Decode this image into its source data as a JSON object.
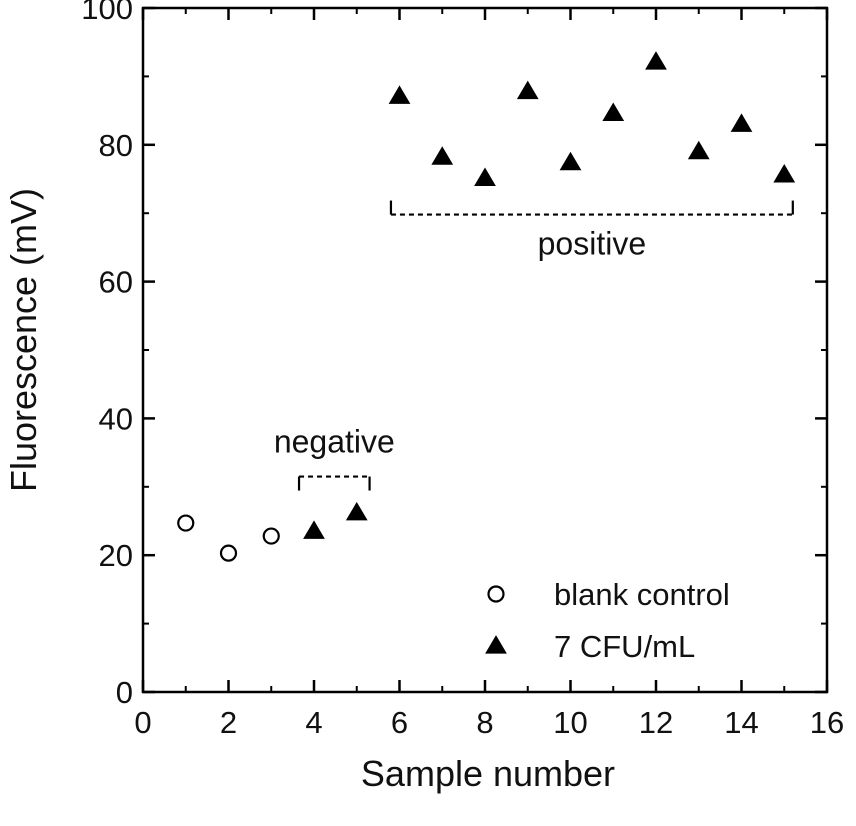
{
  "chart_data": {
    "type": "scatter",
    "title": "",
    "xlabel": "Sample number",
    "ylabel": "Fluorescence (mV)",
    "xlim": [
      0,
      16
    ],
    "ylim": [
      0,
      100
    ],
    "xticks": [
      0,
      2,
      4,
      6,
      8,
      10,
      12,
      14,
      16
    ],
    "yticks": [
      0,
      20,
      40,
      60,
      80,
      100
    ],
    "grid": false,
    "legend_position": "bottom-right",
    "series": [
      {
        "name": "blank control",
        "marker": "open-circle",
        "color": "#000000",
        "x": [
          1,
          2,
          3
        ],
        "y": [
          24.7,
          20.3,
          22.8
        ]
      },
      {
        "name": "7 CFU/mL",
        "marker": "filled-triangle",
        "color": "#000000",
        "x": [
          4,
          5,
          6,
          7,
          8,
          9,
          10,
          11,
          12,
          13,
          14,
          15
        ],
        "y": [
          23.5,
          26.2,
          87.1,
          78.2,
          75.1,
          87.8,
          77.4,
          84.6,
          92.1,
          79.0,
          83.0,
          75.6
        ]
      }
    ],
    "annotations": [
      {
        "text": "negative",
        "x_range": [
          3.65,
          5.3
        ],
        "y": 31.5
      },
      {
        "text": "positive",
        "x_range": [
          5.8,
          15.2
        ],
        "y": 69.8
      }
    ]
  }
}
